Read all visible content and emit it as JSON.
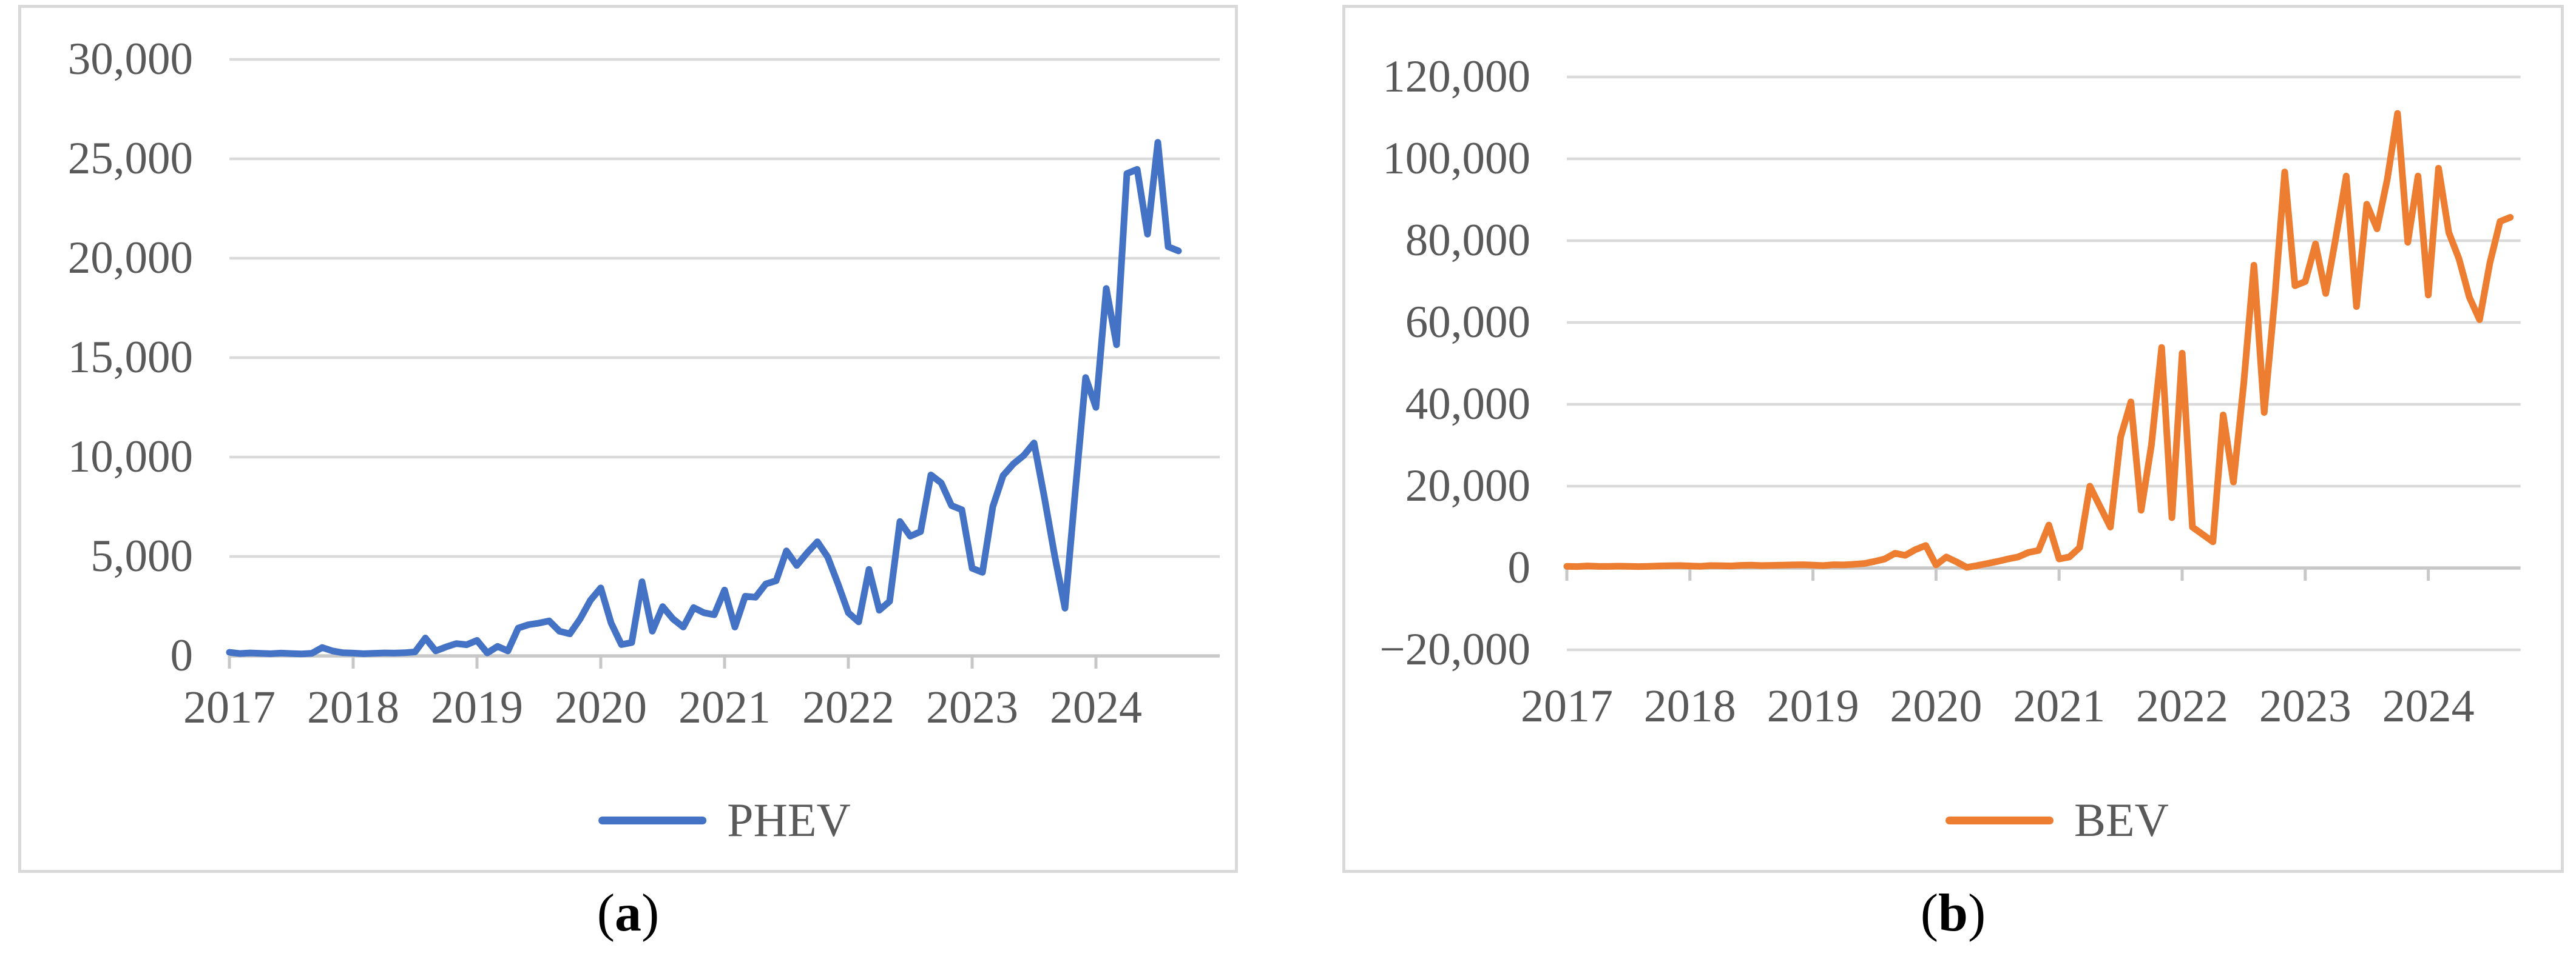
{
  "figure": {
    "captions": [
      {
        "open": "(",
        "letter": "a",
        "close": ")"
      },
      {
        "open": "(",
        "letter": "b",
        "close": ")"
      }
    ],
    "colors": {
      "grid": "#DADADA",
      "axis": "#C8C8C8",
      "tick_label": "#595959",
      "caption": "#000000",
      "panel_border": "#D9D9D9"
    }
  },
  "chart_data": [
    {
      "type": "line",
      "title": "",
      "legend_position": "bottom",
      "grid": true,
      "x_start": "2017-01",
      "x_end": "2024-09",
      "x_tick_labels": [
        "2017",
        "2018",
        "2019",
        "2020",
        "2021",
        "2022",
        "2023",
        "2024"
      ],
      "ylim": [
        0,
        30000
      ],
      "y_ticks": [
        0,
        5000,
        10000,
        15000,
        20000,
        25000,
        30000
      ],
      "y_tick_labels": [
        "0",
        "5,000",
        "10,000",
        "15,000",
        "20,000",
        "25,000",
        "30,000"
      ],
      "series": [
        {
          "name": "PHEV",
          "color": "#4472C4",
          "values": [
            180,
            120,
            150,
            130,
            110,
            140,
            120,
            100,
            130,
            420,
            250,
            160,
            140,
            110,
            130,
            150,
            140,
            160,
            200,
            900,
            250,
            450,
            620,
            560,
            780,
            150,
            480,
            250,
            1400,
            1570,
            1650,
            1760,
            1240,
            1110,
            1860,
            2800,
            3420,
            1660,
            570,
            670,
            3730,
            1240,
            2480,
            1860,
            1450,
            2430,
            2170,
            2070,
            3310,
            1450,
            3000,
            2950,
            3620,
            3780,
            5280,
            4550,
            5180,
            5740,
            4970,
            3620,
            2170,
            1710,
            4350,
            2300,
            2740,
            6760,
            6020,
            6250,
            9100,
            8700,
            7560,
            7350,
            4410,
            4200,
            7500,
            9070,
            9660,
            10080,
            10710,
            7980,
            5040,
            2400,
            8300,
            14000,
            12500,
            18480,
            15650,
            24260,
            24470,
            21210,
            25830,
            20580,
            20370
          ]
        }
      ]
    },
    {
      "type": "line",
      "title": "",
      "legend_position": "bottom",
      "grid": true,
      "x_start": "2017-01",
      "x_end": "2024-09",
      "x_tick_labels": [
        "2017",
        "2018",
        "2019",
        "2020",
        "2021",
        "2022",
        "2023",
        "2024"
      ],
      "ylim": [
        -20000,
        120000
      ],
      "y_ticks": [
        -20000,
        0,
        20000,
        40000,
        60000,
        80000,
        100000,
        120000
      ],
      "y_tick_labels": [
        "−20,000",
        "0",
        "20,000",
        "40,000",
        "60,000",
        "80,000",
        "100,000",
        "120,000"
      ],
      "series": [
        {
          "name": "BEV",
          "color": "#ED7D31",
          "values": [
            400,
            350,
            500,
            420,
            380,
            450,
            400,
            350,
            420,
            500,
            550,
            600,
            500,
            420,
            600,
            550,
            500,
            650,
            700,
            600,
            650,
            700,
            750,
            800,
            700,
            600,
            800,
            750,
            900,
            1100,
            1600,
            2200,
            3600,
            3100,
            4500,
            5500,
            760,
            2700,
            1500,
            150,
            600,
            1100,
            1600,
            2200,
            2700,
            3800,
            4300,
            10500,
            2200,
            2700,
            5000,
            20000,
            15000,
            10000,
            32000,
            40600,
            14100,
            30000,
            53900,
            12300,
            52500,
            10000,
            8200,
            6400,
            37400,
            21000,
            45000,
            74000,
            38000,
            65000,
            96800,
            69000,
            70000,
            79200,
            67100,
            81000,
            95800,
            63900,
            88900,
            82900,
            95000,
            111100,
            79600,
            95800,
            66700,
            97700,
            82000,
            75500,
            66200,
            60700,
            74500,
            84700,
            85700
          ]
        }
      ]
    }
  ]
}
